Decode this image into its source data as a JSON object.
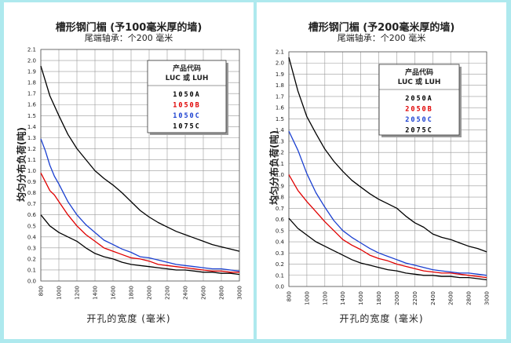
{
  "colors": {
    "background": "#aee9ee",
    "panel": "#ffffff",
    "grid": "#9a9a9a",
    "black": "#000000",
    "red": "#e00000",
    "blue": "#1a3fd0"
  },
  "chart_data": [
    {
      "type": "line",
      "title": "槽形钢门楣 (予100毫米厚的墙)",
      "subtitle": "尾端轴承：个200 毫米",
      "xlabel": "开孔的宽度 (毫米)",
      "ylabel": "均匀分布负荷(吨)",
      "xlim": [
        800,
        3000
      ],
      "ylim": [
        0,
        2.1
      ],
      "xticks": [
        "800",
        "1000",
        "1200",
        "1400",
        "1600",
        "1800",
        "2000",
        "2200",
        "2400",
        "2600",
        "2800",
        "3000"
      ],
      "yticks": [
        "0.0",
        "0.1",
        "0.2",
        "0.3",
        "0.4",
        "0.5",
        "0.6",
        "0.7",
        "0.8",
        "0.9",
        "1.0",
        "1.1",
        "1.2",
        "1.3",
        "1.4",
        "1.5",
        "1.6",
        "1.7",
        "1.8",
        "1.9",
        "2.0",
        "2.1"
      ],
      "grid": true,
      "legend_title": [
        "产品代码",
        "LUC 或 LUH"
      ],
      "legend_position": "top-right",
      "series": [
        {
          "name": "1050A",
          "color": "black",
          "x": [
            800,
            900,
            1000,
            1100,
            1200,
            1300,
            1400,
            1500,
            1600,
            1700,
            1800,
            1900,
            2000,
            2100,
            2200,
            2300,
            2400,
            2500,
            2600,
            2700,
            2800,
            2900,
            3000
          ],
          "y": [
            1.95,
            1.68,
            1.5,
            1.33,
            1.2,
            1.1,
            1.0,
            0.93,
            0.87,
            0.8,
            0.72,
            0.64,
            0.58,
            0.53,
            0.49,
            0.45,
            0.42,
            0.39,
            0.36,
            0.33,
            0.31,
            0.29,
            0.27
          ]
        },
        {
          "name": "1050B",
          "color": "red",
          "x": [
            800,
            850,
            900,
            950,
            1000,
            1100,
            1200,
            1300,
            1400,
            1500,
            1600,
            1700,
            1800,
            1900,
            2000,
            2100,
            2200,
            2300,
            2400,
            2500,
            2600,
            2700,
            2800,
            2900,
            3000
          ],
          "y": [
            0.98,
            0.9,
            0.82,
            0.78,
            0.72,
            0.6,
            0.5,
            0.42,
            0.36,
            0.3,
            0.27,
            0.24,
            0.21,
            0.2,
            0.18,
            0.15,
            0.14,
            0.13,
            0.12,
            0.11,
            0.1,
            0.09,
            0.09,
            0.08,
            0.08
          ]
        },
        {
          "name": "1050C",
          "color": "blue",
          "x": [
            800,
            850,
            900,
            950,
            1000,
            1100,
            1200,
            1300,
            1400,
            1500,
            1600,
            1700,
            1800,
            1900,
            2000,
            2100,
            2200,
            2300,
            2400,
            2500,
            2600,
            2700,
            2800,
            2900,
            3000
          ],
          "y": [
            1.29,
            1.18,
            1.05,
            0.95,
            0.88,
            0.72,
            0.6,
            0.51,
            0.44,
            0.37,
            0.33,
            0.29,
            0.26,
            0.22,
            0.21,
            0.19,
            0.17,
            0.15,
            0.14,
            0.13,
            0.12,
            0.11,
            0.11,
            0.1,
            0.09
          ]
        },
        {
          "name": "1075C",
          "color": "black",
          "x": [
            800,
            900,
            1000,
            1100,
            1200,
            1300,
            1400,
            1500,
            1600,
            1700,
            1800,
            1900,
            2000,
            2100,
            2200,
            2300,
            2400,
            2500,
            2600,
            2700,
            2800,
            2900,
            3000
          ],
          "y": [
            0.6,
            0.5,
            0.44,
            0.4,
            0.36,
            0.3,
            0.25,
            0.22,
            0.2,
            0.17,
            0.15,
            0.14,
            0.13,
            0.12,
            0.11,
            0.1,
            0.1,
            0.09,
            0.08,
            0.08,
            0.07,
            0.07,
            0.06
          ]
        }
      ]
    },
    {
      "type": "line",
      "title": "槽形钢门楣 (予200毫米厚的墙)",
      "subtitle": "尾端轴承：个200 毫米",
      "xlabel": "开孔的宽度 (毫米)",
      "ylabel": "均匀分布负荷(吨)",
      "xlim": [
        800,
        3000
      ],
      "ylim": [
        0,
        2.1
      ],
      "xticks": [
        "800",
        "1000",
        "1200",
        "1400",
        "1600",
        "1800",
        "2000",
        "2200",
        "2400",
        "2600",
        "2800",
        "3000"
      ],
      "yticks": [
        "0.0",
        "0.1",
        "0.2",
        "0.3",
        "0.4",
        "0.5",
        "0.6",
        "0.7",
        "0.8",
        "0.9",
        "1.0",
        "1.1",
        "1.2",
        "1.3",
        "1.4",
        "1.5",
        "1.6",
        "1.7",
        "1.8",
        "1.9",
        "2.0",
        "2.1"
      ],
      "grid": true,
      "legend_title": [
        "产品代码",
        "LUC 或 LUH"
      ],
      "legend_position": "top-right",
      "series": [
        {
          "name": "2050A",
          "color": "black",
          "x": [
            800,
            900,
            1000,
            1100,
            1200,
            1300,
            1400,
            1500,
            1600,
            1700,
            1800,
            1900,
            2000,
            2100,
            2200,
            2300,
            2400,
            2500,
            2600,
            2700,
            2800,
            2900,
            3000
          ],
          "y": [
            2.05,
            1.75,
            1.52,
            1.37,
            1.23,
            1.12,
            1.03,
            0.95,
            0.89,
            0.83,
            0.78,
            0.74,
            0.7,
            0.63,
            0.57,
            0.53,
            0.47,
            0.44,
            0.42,
            0.39,
            0.36,
            0.34,
            0.31
          ]
        },
        {
          "name": "2050B",
          "color": "red",
          "x": [
            800,
            900,
            1000,
            1100,
            1200,
            1300,
            1400,
            1500,
            1600,
            1700,
            1800,
            1900,
            2000,
            2100,
            2200,
            2300,
            2400,
            2500,
            2600,
            2700,
            2800,
            2900,
            3000
          ],
          "y": [
            1.0,
            0.86,
            0.76,
            0.67,
            0.58,
            0.5,
            0.42,
            0.37,
            0.33,
            0.28,
            0.25,
            0.23,
            0.2,
            0.18,
            0.16,
            0.14,
            0.13,
            0.12,
            0.12,
            0.11,
            0.1,
            0.09,
            0.08
          ]
        },
        {
          "name": "2050C",
          "color": "blue",
          "x": [
            800,
            900,
            1000,
            1100,
            1200,
            1300,
            1400,
            1500,
            1600,
            1700,
            1800,
            1900,
            2000,
            2100,
            2200,
            2300,
            2400,
            2500,
            2600,
            2700,
            2800,
            2900,
            3000
          ],
          "y": [
            1.39,
            1.22,
            1.01,
            0.84,
            0.71,
            0.59,
            0.5,
            0.44,
            0.39,
            0.34,
            0.3,
            0.27,
            0.24,
            0.21,
            0.19,
            0.17,
            0.15,
            0.14,
            0.13,
            0.12,
            0.12,
            0.11,
            0.1
          ]
        },
        {
          "name": "2075C",
          "color": "black",
          "x": [
            800,
            900,
            1000,
            1100,
            1200,
            1300,
            1400,
            1500,
            1600,
            1700,
            1800,
            1900,
            2000,
            2100,
            2200,
            2300,
            2400,
            2500,
            2600,
            2700,
            2800,
            2900,
            3000
          ],
          "y": [
            0.61,
            0.52,
            0.46,
            0.4,
            0.36,
            0.32,
            0.28,
            0.24,
            0.21,
            0.19,
            0.17,
            0.15,
            0.14,
            0.12,
            0.11,
            0.1,
            0.1,
            0.09,
            0.09,
            0.08,
            0.08,
            0.07,
            0.06
          ]
        }
      ]
    }
  ]
}
